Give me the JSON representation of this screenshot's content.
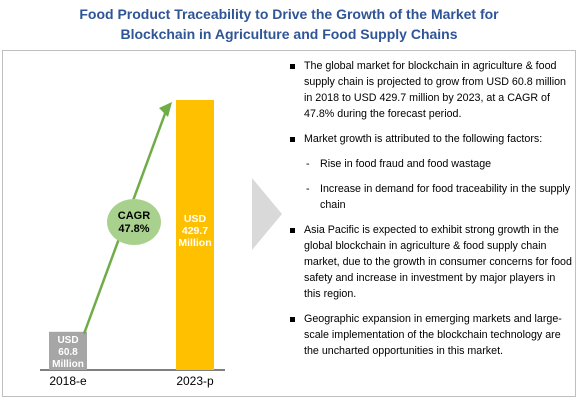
{
  "header": {
    "line1": "Food Product Traceability to Drive the Growth of the Market for",
    "line2": "Blockchain in Agriculture and Food Supply Chains"
  },
  "chart_data": {
    "type": "bar",
    "categories": [
      "2018-e",
      "2023-p"
    ],
    "values": [
      60.8,
      429.7
    ],
    "unit": "USD Million",
    "data_labels": [
      [
        "USD",
        "60.8",
        "Million"
      ],
      [
        "USD",
        "429.7",
        "Million"
      ]
    ],
    "bar_colors": [
      "#a6a6a6",
      "#ffc000"
    ],
    "cagr": {
      "label": "CAGR",
      "value": "47.8%",
      "color": "#a9d18e"
    },
    "arrow_color": "#70ad47",
    "ylim": [
      0,
      429.7
    ],
    "grid": false,
    "legend": "none"
  },
  "bullets": [
    {
      "type": "main",
      "text": "The global market for blockchain in agriculture & food supply chain is projected to grow from USD 60.8 million in 2018 to USD 429.7 million by 2023, at a CAGR of 47.8% during the forecast period."
    },
    {
      "type": "main",
      "text": "Market growth is attributed to the following factors:"
    },
    {
      "type": "sub",
      "text": "Rise in food fraud and food wastage"
    },
    {
      "type": "sub",
      "text": "Increase in demand for food traceability in the supply chain"
    },
    {
      "type": "main",
      "text": "Asia Pacific is expected to exhibit strong growth in the global blockchain in agriculture & food supply chain market, due to the growth in consumer concerns for food safety and increase in investment by major players in this region."
    },
    {
      "type": "main",
      "text": "Geographic expansion in emerging markets and large-scale implementation of the blockchain technology are the uncharted opportunities in this market."
    }
  ],
  "colors": {
    "title": "#2f5597",
    "chevron": "#d9d9d9"
  }
}
